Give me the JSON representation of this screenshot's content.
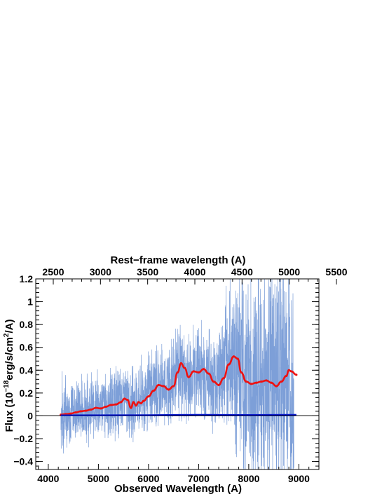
{
  "chart_data": {
    "type": "line",
    "xlabel": "Observed Wavelength (A)",
    "xlabel_top": "Rest−frame wavelength (A)",
    "ylabel_main": "Flux (10",
    "ylabel_exp1": "−18",
    "ylabel_mid": "erg/s/cm",
    "ylabel_exp2": "2",
    "ylabel_end": "/A)",
    "xlim": [
      3750,
      9400
    ],
    "ylim": [
      -0.47,
      1.2
    ],
    "rest_xlim": [
      2500,
      5500
    ],
    "x_ticks": [
      "4000",
      "5000",
      "6000",
      "7000",
      "8000",
      "9000"
    ],
    "x_tick_values": [
      4000,
      5000,
      6000,
      7000,
      8000,
      9000
    ],
    "top_ticks": [
      "2500",
      "3000",
      "3500",
      "4000",
      "4500",
      "5000",
      "5500"
    ],
    "top_tick_values": [
      2500,
      3000,
      3500,
      4000,
      4500,
      5000,
      5500
    ],
    "y_ticks": [
      "−0.4",
      "−0.2",
      "0",
      "0.2",
      "0.4",
      "0.6",
      "0.8",
      "1",
      "1.2"
    ],
    "y_tick_values": [
      -0.4,
      -0.2,
      0,
      0.2,
      0.4,
      0.6,
      0.8,
      1.0,
      1.2
    ],
    "grid": false,
    "zero_line": true,
    "series": [
      {
        "role": "observed-spectrum",
        "color": "#7d9fd8",
        "x": [
          4250,
          4300,
          4400,
          4500,
          4600,
          4700,
          4800,
          4900,
          5000,
          5100,
          5200,
          5300,
          5400,
          5500,
          5600,
          5700,
          5800,
          5900,
          6000,
          6100,
          6200,
          6300,
          6400,
          6500,
          6600,
          6700,
          6800,
          6900,
          7000,
          7100,
          7200,
          7300,
          7400,
          7500,
          7600,
          7700,
          7800,
          7900,
          8000,
          8100,
          8200,
          8300,
          8400,
          8500,
          8600,
          8700,
          8800,
          8900
        ],
        "y": [
          0.02,
          0.03,
          0.05,
          0.04,
          0.06,
          0.05,
          0.08,
          0.07,
          0.09,
          0.1,
          0.1,
          0.12,
          0.13,
          0.14,
          0.12,
          0.11,
          0.15,
          0.16,
          0.2,
          0.24,
          0.26,
          0.25,
          0.28,
          0.32,
          0.4,
          0.38,
          0.34,
          0.37,
          0.4,
          0.39,
          0.33,
          0.3,
          0.35,
          0.45,
          0.5,
          0.52,
          0.45,
          0.35,
          0.3,
          0.31,
          0.3,
          0.32,
          0.31,
          0.3,
          0.33,
          0.36,
          0.39,
          0.37
        ],
        "noise": [
          0.3,
          0.35,
          0.28,
          0.25,
          0.26,
          0.3,
          0.28,
          0.27,
          0.26,
          0.27,
          0.28,
          0.3,
          0.29,
          0.3,
          0.28,
          0.3,
          0.3,
          0.32,
          0.33,
          0.35,
          0.38,
          0.33,
          0.34,
          0.35,
          0.38,
          0.38,
          0.36,
          0.38,
          0.4,
          0.42,
          0.4,
          0.4,
          0.45,
          0.5,
          0.6,
          0.7,
          0.75,
          0.8,
          0.85,
          0.85,
          0.9,
          0.9,
          0.95,
          0.95,
          1.0,
          1.0,
          1.0,
          1.0
        ]
      },
      {
        "role": "smoothed-spectrum",
        "color": "#ee1111",
        "x": [
          4250,
          4350,
          4450,
          4550,
          4650,
          4750,
          4850,
          4950,
          5050,
          5150,
          5250,
          5350,
          5450,
          5520,
          5580,
          5650,
          5700,
          5750,
          5800,
          5850,
          5900,
          6000,
          6100,
          6200,
          6300,
          6400,
          6500,
          6580,
          6650,
          6720,
          6800,
          6900,
          7000,
          7100,
          7200,
          7300,
          7400,
          7500,
          7600,
          7700,
          7780,
          7850,
          7950,
          8050,
          8150,
          8250,
          8350,
          8450,
          8550,
          8650,
          8750,
          8800,
          8850,
          8950
        ],
        "y": [
          0.01,
          0.015,
          0.02,
          0.03,
          0.04,
          0.045,
          0.055,
          0.07,
          0.065,
          0.08,
          0.095,
          0.1,
          0.12,
          0.15,
          0.14,
          0.07,
          0.12,
          0.09,
          0.12,
          0.11,
          0.13,
          0.17,
          0.22,
          0.27,
          0.26,
          0.23,
          0.26,
          0.38,
          0.46,
          0.42,
          0.34,
          0.39,
          0.38,
          0.41,
          0.37,
          0.3,
          0.27,
          0.33,
          0.45,
          0.52,
          0.5,
          0.38,
          0.3,
          0.28,
          0.29,
          0.3,
          0.31,
          0.29,
          0.26,
          0.3,
          0.35,
          0.4,
          0.39,
          0.36
        ]
      },
      {
        "role": "error-spectrum",
        "color": "#1020cc",
        "x": [
          4250,
          5000,
          6000,
          7000,
          8000,
          8950
        ],
        "y": [
          0.005,
          0.006,
          0.007,
          0.01,
          0.008,
          0.01
        ]
      }
    ]
  }
}
